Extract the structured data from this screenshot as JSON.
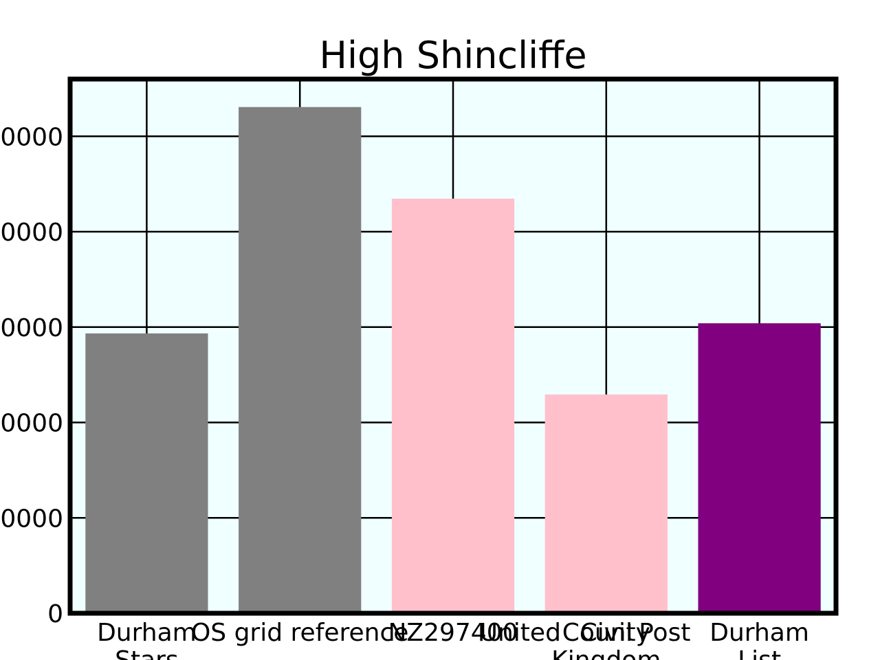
{
  "chart_data": {
    "type": "bar",
    "title": "High Shincliffe",
    "xlabel": "",
    "ylabel": "",
    "categories": [
      "Durham",
      "OS grid reference",
      "NZ297400",
      "County",
      "Durham"
    ],
    "category_labels": [
      [
        "Durham",
        "Stars"
      ],
      [
        "OS grid reference"
      ],
      [
        "NZ297400"
      ],
      [
        "County",
        "Kingdom"
      ],
      [
        "Durham",
        "List"
      ]
    ],
    "extra_axis_text": [
      "United",
      "Civil",
      "Post"
    ],
    "values": [
      22000,
      39800,
      32600,
      17200,
      22800
    ],
    "bar_colors": [
      "#808080",
      "#808080",
      "#ffc0cb",
      "#ffc0cb",
      "#800080"
    ],
    "ylim": [
      0,
      42000
    ],
    "y_ticks": [
      0,
      7500,
      15000,
      22500,
      30000,
      37500
    ],
    "y_tick_labels": [
      "0",
      "0000",
      "0000",
      "0000",
      "0000",
      "0000"
    ],
    "grid": true,
    "background": "#f0ffff"
  }
}
